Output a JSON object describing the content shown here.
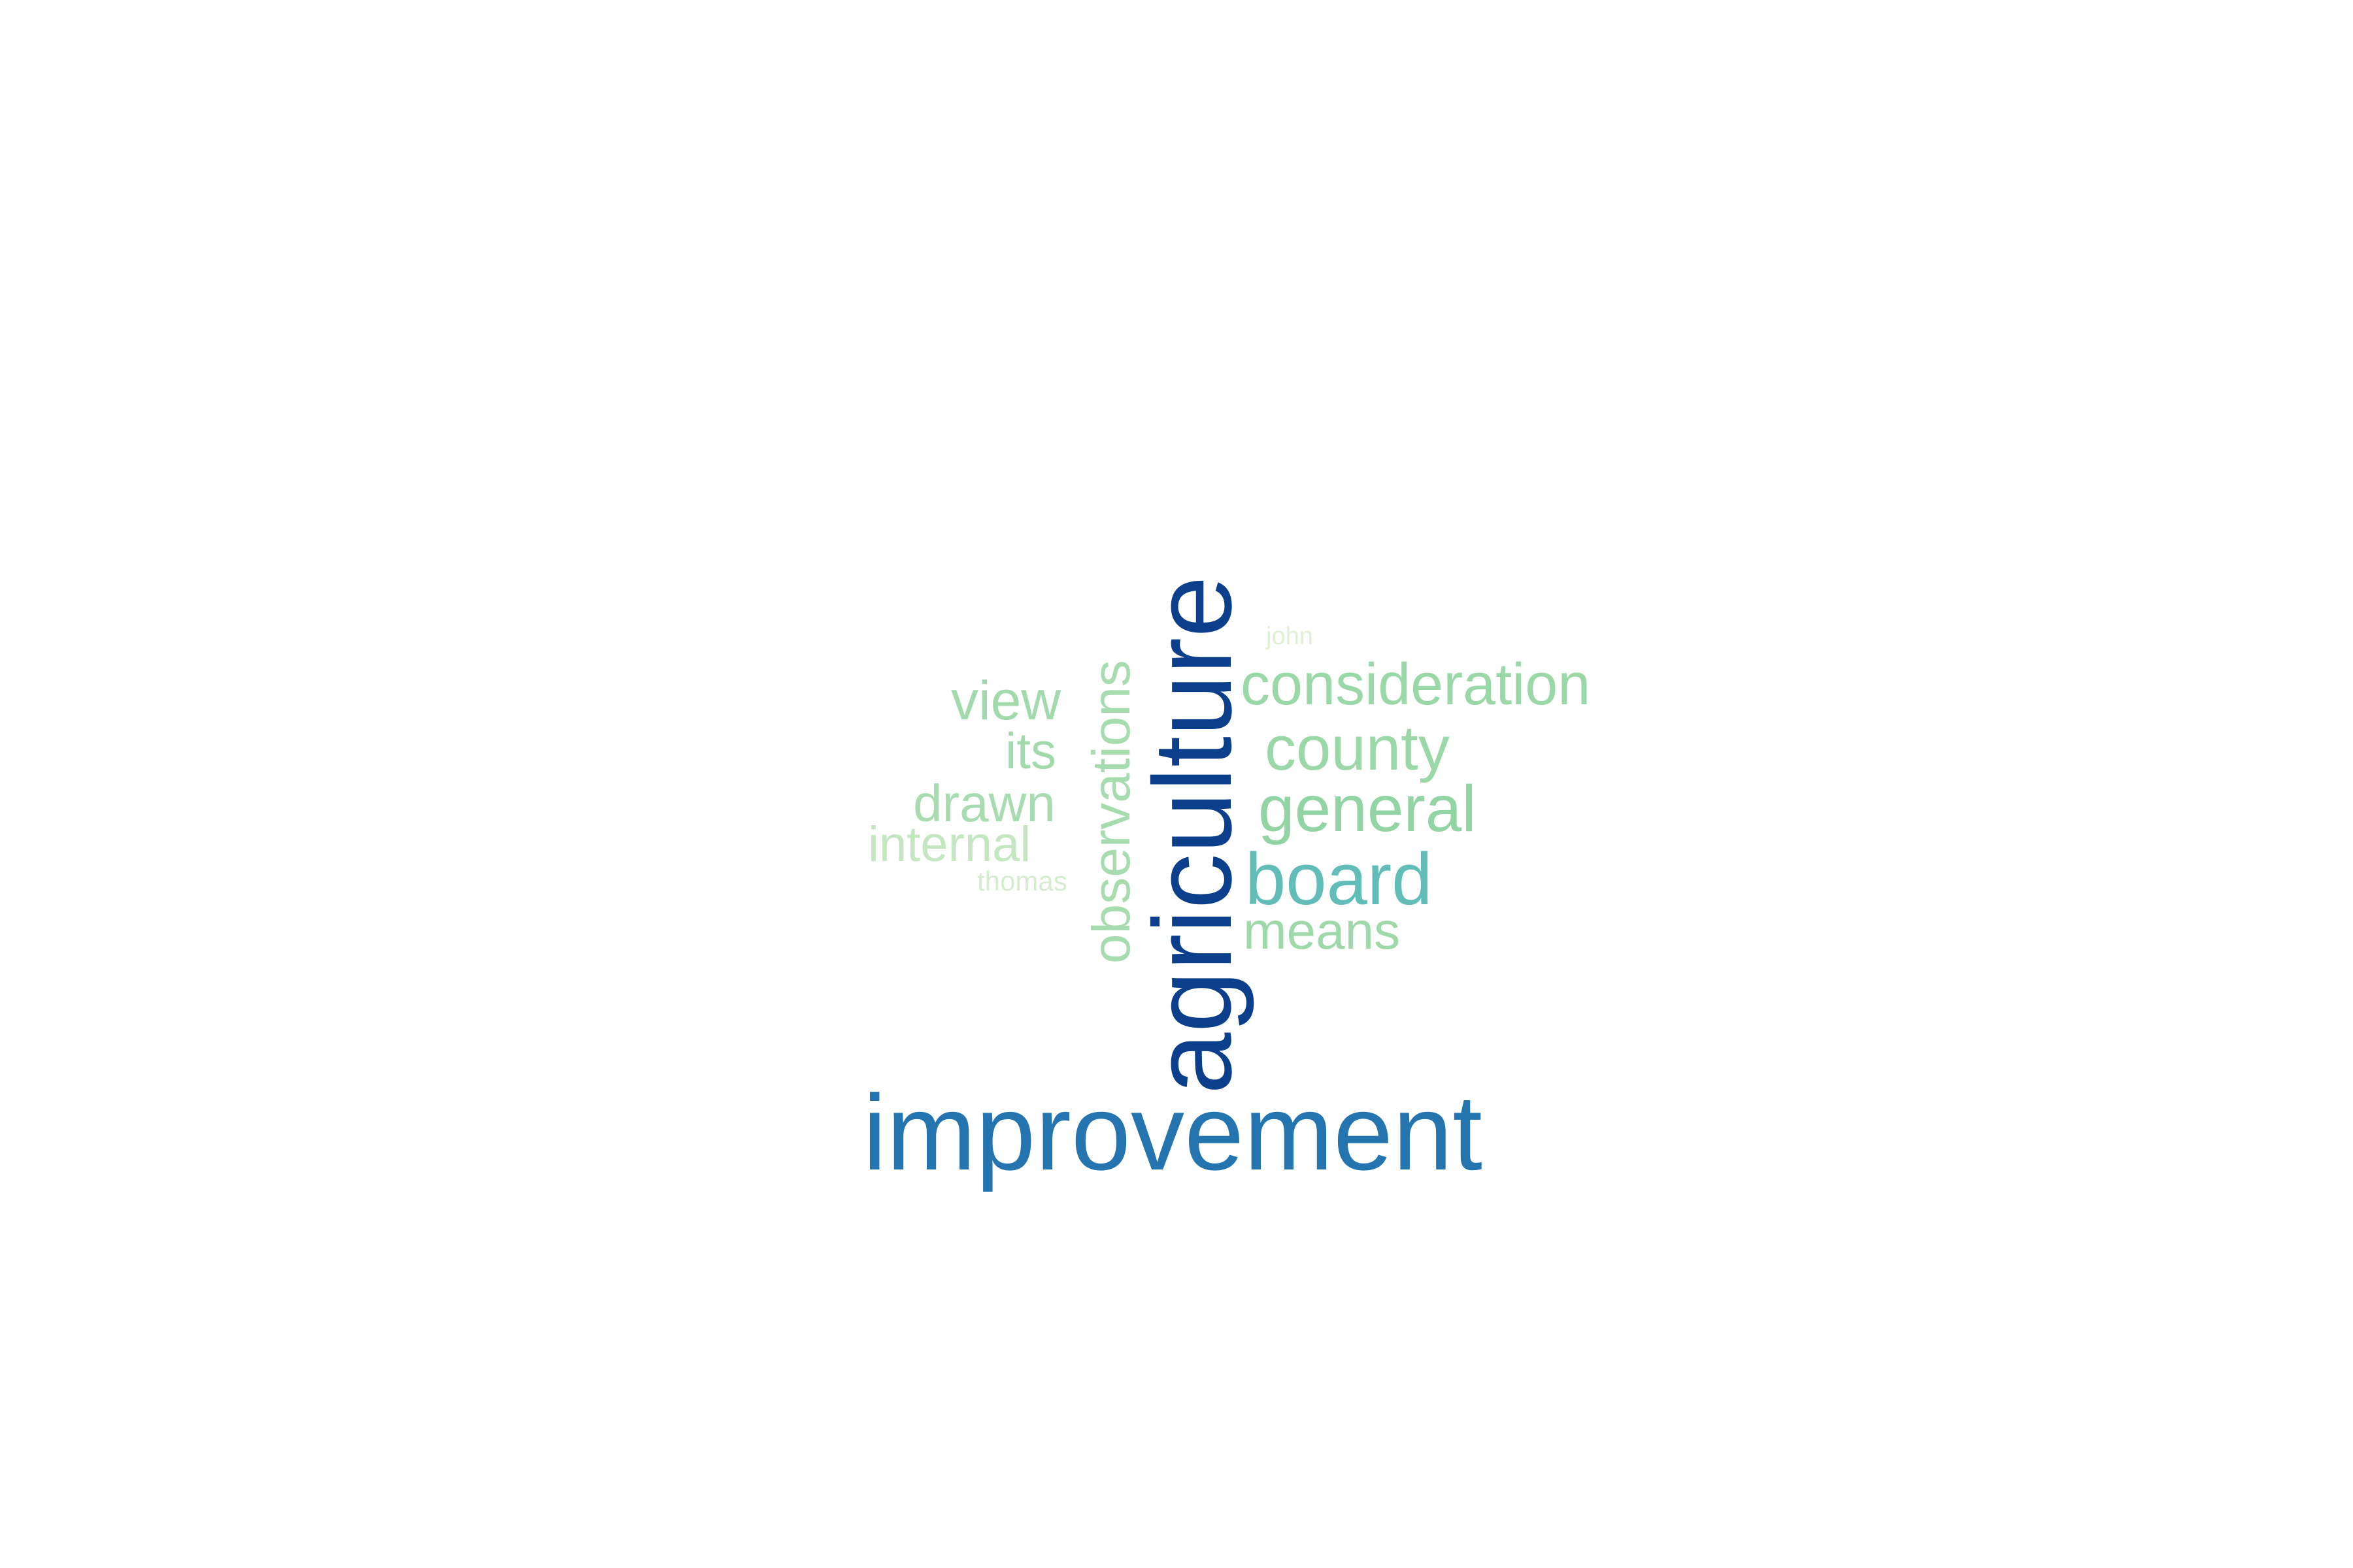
{
  "word_cloud": {
    "colors": {
      "darkest": "#0b3f8c",
      "dark": "#2474b0",
      "mid": "#62bdb8",
      "light": "#9bd8a8",
      "pale": "#c4e6c0",
      "palest": "#dff0d6"
    },
    "words": {
      "improvement": "improvement",
      "agriculture": "agriculture",
      "observations": "observations",
      "board": "board",
      "consideration": "consideration",
      "county": "county",
      "general": "general",
      "means": "means",
      "view": "view",
      "its": "its",
      "drawn": "drawn",
      "internal": "internal",
      "thomas": "thomas",
      "john": "john"
    }
  }
}
